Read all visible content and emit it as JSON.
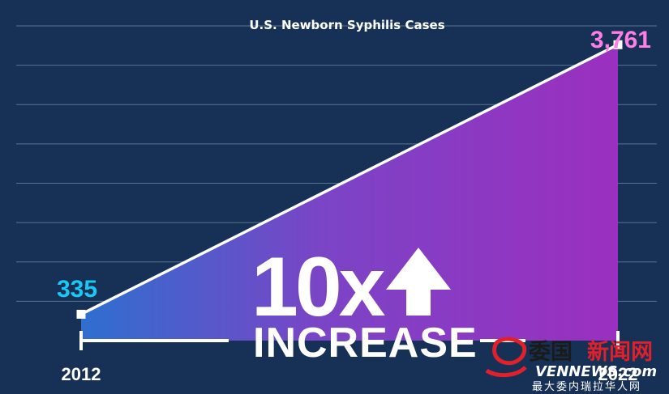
{
  "chart_data": {
    "type": "area",
    "title": "U.S. Newborn Syphilis Cases",
    "x": [
      "2012",
      "2022"
    ],
    "values": [
      335,
      3761
    ],
    "x_tick_labels": [
      "2012",
      "2022"
    ],
    "start_label": "335",
    "end_label": "3,761",
    "ylim": [
      0,
      4000
    ],
    "grid": true,
    "callout": {
      "number": "10x",
      "word": "INCREASE",
      "icon": "up-arrow-icon"
    }
  },
  "watermark": {
    "name_cn_black": "委国",
    "name_cn_red": "新闻网",
    "site": "VENNEWS.com",
    "tagline": "最大委内瑞拉华人网",
    "icon": "dragon-logo-icon"
  },
  "colors": {
    "background": "#163155",
    "gridline": "#5a7394",
    "area_start": "#2e6fcf",
    "area_end": "#9b2fbf",
    "line": "#ffffff",
    "start_label": "#19c8f5",
    "end_label": "#ff7ee6",
    "watermark_red": "#e0202a"
  }
}
